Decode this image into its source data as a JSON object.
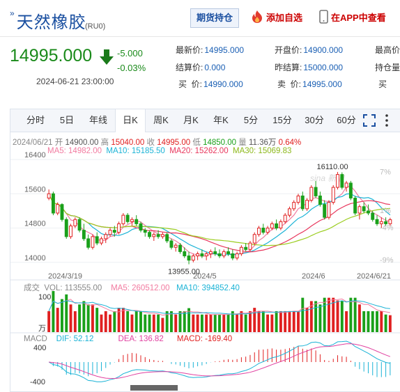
{
  "header": {
    "title": "天然橡胶",
    "code": "(RU0)",
    "holdings_button": "期货持仓",
    "add_watchlist": "添加自选",
    "app_view": "在APP中查看"
  },
  "quote": {
    "price": "14995.000",
    "change": "-5.000",
    "change_pct": "-0.03%",
    "datetime": "2024-06-21 23:00:00",
    "fields": [
      {
        "k": "最新价:",
        "v": "14995.000"
      },
      {
        "k": "开盘价:",
        "v": "14900.000"
      },
      {
        "k": "最高价:",
        "v": ""
      },
      {
        "k": "结算价:",
        "v": "0.000"
      },
      {
        "k": "昨结算:",
        "v": "15000.000"
      },
      {
        "k": "持仓量:",
        "v": ""
      },
      {
        "k": "买  价:",
        "v": "14990.000"
      },
      {
        "k": "卖  价:",
        "v": "14995.000"
      },
      {
        "k": "买",
        "v": ""
      }
    ]
  },
  "tabs": [
    "分时",
    "5日",
    "年线",
    "日K",
    "周K",
    "月K",
    "年K",
    "5分",
    "15分",
    "30分",
    "60分"
  ],
  "active_tab": "日K",
  "ohlc_line": {
    "date": "2024/06/21",
    "open_k": "开",
    "open": "14900.00",
    "high_k": "高",
    "high": "15040.00",
    "close_k": "收",
    "close": "14995.00",
    "low_k": "低",
    "low": "14850.00",
    "vol_k": "量",
    "vol": "11.36万",
    "pct": "0.64%"
  },
  "ma_line": {
    "ma5": "MA5: 14982.00",
    "ma10": "MA10: 15185.50",
    "ma20": "MA20: 15262.00",
    "ma30": "MA30: 15069.83"
  },
  "vol_line": {
    "label": "成交",
    "vol": "VOL: 113555.00",
    "ma5": "MA5: 260512.00",
    "ma10": "MA10: 394852.40"
  },
  "macd_line": {
    "label": "MACD",
    "dif": "DIF: 52.12",
    "dea": "DEA: 136.82",
    "macd": "MACD: -169.40"
  },
  "watermark": "sina 新浪",
  "colors": {
    "up": "#e02020",
    "down": "#1aa01a",
    "ma5": "#f27ba0",
    "ma10": "#1bb3d6",
    "ma20": "#e8365c",
    "ma30": "#9bcd1f",
    "accent": "#1a4fa0"
  },
  "chart_data": {
    "type": "candlestick",
    "price_axis": {
      "ticks": [
        16400,
        15600,
        14800,
        14000
      ],
      "ylim": [
        13850,
        16450
      ]
    },
    "pct_axis_ticks": [
      "7%",
      "1%",
      "-4%",
      "-9%"
    ],
    "date_labels": [
      "2024/3/19",
      "2024/5",
      "2024/6",
      "2024/6/21"
    ],
    "annotations": [
      {
        "text": "16110.00",
        "value": 16110
      },
      {
        "text": "13955.00",
        "value": 13955
      }
    ],
    "ohlc": [
      [
        15500,
        15700,
        15450,
        15600
      ],
      [
        15600,
        15650,
        15100,
        15150
      ],
      [
        15150,
        15400,
        15100,
        15350
      ],
      [
        15350,
        15380,
        14950,
        15000
      ],
      [
        15000,
        15050,
        14550,
        14600
      ],
      [
        14600,
        14900,
        14550,
        14850
      ],
      [
        14850,
        15050,
        14800,
        15000
      ],
      [
        15000,
        15050,
        14700,
        14750
      ],
      [
        14750,
        14900,
        14500,
        14550
      ],
      [
        14550,
        14650,
        14300,
        14350
      ],
      [
        14350,
        14650,
        14300,
        14600
      ],
      [
        14600,
        14700,
        14400,
        14450
      ],
      [
        14450,
        14600,
        14400,
        14550
      ],
      [
        14550,
        14700,
        14450,
        14650
      ],
      [
        14650,
        14800,
        14600,
        14750
      ],
      [
        14750,
        14850,
        14600,
        14700
      ],
      [
        14700,
        14950,
        14650,
        14900
      ],
      [
        14900,
        15150,
        14850,
        15100
      ],
      [
        15100,
        15150,
        14900,
        14950
      ],
      [
        14950,
        15050,
        14850,
        15000
      ],
      [
        15000,
        15100,
        14850,
        14900
      ],
      [
        14900,
        14950,
        14700,
        14750
      ],
      [
        14750,
        14800,
        14600,
        14700
      ],
      [
        14700,
        14750,
        14550,
        14600
      ],
      [
        14600,
        14700,
        14500,
        14650
      ],
      [
        14650,
        14750,
        14550,
        14600
      ],
      [
        14600,
        14700,
        14550,
        14650
      ],
      [
        14650,
        14700,
        14450,
        14500
      ],
      [
        14500,
        14550,
        14300,
        14350
      ],
      [
        14350,
        14450,
        14250,
        14400
      ],
      [
        14400,
        14450,
        14200,
        14250
      ],
      [
        14250,
        14350,
        14100,
        14150
      ],
      [
        14150,
        14250,
        13955,
        14050
      ],
      [
        14050,
        14200,
        14000,
        14150
      ],
      [
        14150,
        14250,
        14050,
        14200
      ],
      [
        14200,
        14300,
        14100,
        14150
      ],
      [
        14150,
        14250,
        14050,
        14200
      ],
      [
        14200,
        14300,
        14100,
        14250
      ],
      [
        14250,
        14350,
        14150,
        14200
      ],
      [
        14200,
        14300,
        14100,
        14150
      ],
      [
        14150,
        14300,
        14100,
        14250
      ],
      [
        14250,
        14350,
        14150,
        14200
      ],
      [
        14200,
        14300,
        14050,
        14100
      ],
      [
        14100,
        14250,
        14050,
        14200
      ],
      [
        14200,
        14400,
        14150,
        14350
      ],
      [
        14350,
        14450,
        14250,
        14300
      ],
      [
        14300,
        14500,
        14250,
        14450
      ],
      [
        14450,
        14700,
        14400,
        14650
      ],
      [
        14650,
        14850,
        14600,
        14800
      ],
      [
        14800,
        14900,
        14650,
        14700
      ],
      [
        14700,
        14850,
        14650,
        14800
      ],
      [
        14800,
        14950,
        14750,
        14900
      ],
      [
        14900,
        15000,
        14750,
        14800
      ],
      [
        14800,
        15000,
        14750,
        14950
      ],
      [
        14950,
        15150,
        14900,
        15100
      ],
      [
        15100,
        15300,
        15050,
        15250
      ],
      [
        15250,
        15450,
        15200,
        15400
      ],
      [
        15400,
        15600,
        15350,
        15550
      ],
      [
        15550,
        15650,
        15200,
        15250
      ],
      [
        15250,
        15500,
        15200,
        15450
      ],
      [
        15450,
        15800,
        15400,
        15750
      ],
      [
        15750,
        15900,
        15500,
        15550
      ],
      [
        15550,
        15650,
        15300,
        15350
      ],
      [
        15350,
        15450,
        15000,
        15050
      ],
      [
        15050,
        15450,
        15000,
        15400
      ],
      [
        15400,
        15800,
        15350,
        15750
      ],
      [
        15750,
        16110,
        15700,
        16050
      ],
      [
        16050,
        16100,
        15700,
        15750
      ],
      [
        15750,
        15900,
        15650,
        15850
      ],
      [
        15850,
        15900,
        15450,
        15500
      ],
      [
        15500,
        15550,
        15100,
        15150
      ],
      [
        15150,
        15350,
        15000,
        15300
      ],
      [
        15300,
        15400,
        15150,
        15200
      ],
      [
        15200,
        15350,
        15100,
        15150
      ],
      [
        15150,
        15200,
        14950,
        15000
      ],
      [
        15000,
        15100,
        14850,
        14900
      ],
      [
        14900,
        15050,
        14800,
        14950
      ],
      [
        14950,
        15050,
        14850,
        14900
      ],
      [
        14900,
        15040,
        14850,
        14995
      ]
    ]
  }
}
